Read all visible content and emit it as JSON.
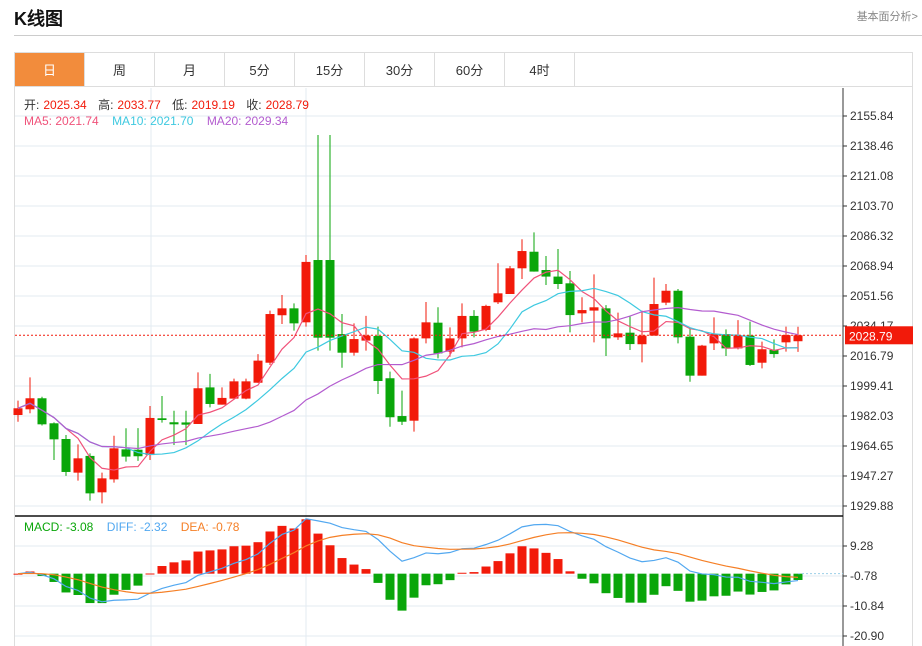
{
  "header": {
    "title": "K线图",
    "link": "基本面分析>"
  },
  "tabs": [
    {
      "label": "日",
      "active": true
    },
    {
      "label": "周"
    },
    {
      "label": "月"
    },
    {
      "label": "5分"
    },
    {
      "label": "15分"
    },
    {
      "label": "30分"
    },
    {
      "label": "60分"
    },
    {
      "label": "4时"
    }
  ],
  "ohlc_info": {
    "open_label": "开:",
    "open": "2025.34",
    "high_label": "高:",
    "high": "2033.77",
    "low_label": "低:",
    "low": "2019.19",
    "close_label": "收:",
    "close": "2028.79"
  },
  "ma_info": {
    "ma5": "MA5: 2021.74",
    "ma10": "MA10: 2021.70",
    "ma20": "MA20: 2029.34"
  },
  "macd_info": {
    "macd": "MACD: -3.08",
    "diff": "DIFF: -2.32",
    "dea": "DEA: -0.78"
  },
  "colors": {
    "up": "#f21a0a",
    "down": "#0aa60a",
    "ma5": "#f0527a",
    "ma10": "#3ec9e0",
    "ma20": "#b35ccf",
    "diff": "#52a8f0",
    "dea": "#f57f26",
    "tab_active": "#f28c3c"
  },
  "chart_data": {
    "type": "candlestick",
    "price_axis_ticks": [
      "2155.84",
      "2138.46",
      "2121.08",
      "2103.70",
      "2086.32",
      "2068.94",
      "2051.56",
      "2034.17",
      "2016.79",
      "1999.41",
      "1982.03",
      "1964.65",
      "1947.27",
      "1929.88"
    ],
    "price_ylim": [
      1929.88,
      2155.84
    ],
    "last_price": "2028.79",
    "macd_axis_ticks": [
      "9.28",
      "-0.78",
      "-10.84",
      "-20.90"
    ],
    "macd_ylim": [
      -20.9,
      9.28
    ],
    "grid": true,
    "candles": [
      [
        1982.6,
        1990.9,
        1978.7,
        1986.5
      ],
      [
        1985.9,
        2004.4,
        1983.6,
        1992.3
      ],
      [
        1992.3,
        1993.2,
        1976.5,
        1977.2
      ],
      [
        1977.8,
        1978.3,
        1956.5,
        1968.5
      ],
      [
        1968.7,
        1971.0,
        1947.3,
        1949.6
      ],
      [
        1949.2,
        1965.6,
        1944.6,
        1957.5
      ],
      [
        1958.9,
        1960.4,
        1933.0,
        1937.2
      ],
      [
        1937.8,
        1949.2,
        1931.4,
        1945.9
      ],
      [
        1945.3,
        1970.6,
        1943.4,
        1963.3
      ],
      [
        1962.7,
        1974.9,
        1955.6,
        1958.5
      ],
      [
        1962.5,
        1975.0,
        1956.0,
        1958.7
      ],
      [
        1959.4,
        1987.8,
        1956.5,
        1980.9
      ],
      [
        1980.7,
        1993.6,
        1978.2,
        1979.7
      ],
      [
        1978.4,
        1985.1,
        1965.2,
        1977.2
      ],
      [
        1978.3,
        1985.1,
        1965.2,
        1977.0
      ],
      [
        1977.4,
        2007.3,
        1977.4,
        1998.1
      ],
      [
        1998.6,
        2006.4,
        1987.0,
        1989.0
      ],
      [
        1988.6,
        1998.6,
        1988.6,
        1992.5
      ],
      [
        1992.1,
        2003.7,
        1992.1,
        2002.1
      ],
      [
        1992.1,
        2003.7,
        1991.7,
        2002.1
      ],
      [
        2001.3,
        2017.9,
        2001.3,
        2014.1
      ],
      [
        2012.9,
        2043.1,
        2011.6,
        2041.1
      ],
      [
        2040.4,
        2052.1,
        2035.3,
        2044.4
      ],
      [
        2044.4,
        2047.3,
        2031.5,
        2035.7
      ],
      [
        2036.3,
        2075.3,
        2033.8,
        2071.3
      ],
      [
        2072.4,
        2144.8,
        2019.9,
        2027.4
      ],
      [
        2072.4,
        2144.8,
        2019.9,
        2027.4
      ],
      [
        2029.5,
        2041.1,
        2010.0,
        2018.7
      ],
      [
        2018.7,
        2035.7,
        2017.0,
        2026.6
      ],
      [
        2025.7,
        2040.0,
        2019.9,
        2028.6
      ],
      [
        2028.4,
        2033.8,
        1994.8,
        2002.3
      ],
      [
        2003.9,
        2007.7,
        1975.8,
        1981.3
      ],
      [
        1982.0,
        1996.7,
        1976.8,
        1978.7
      ],
      [
        1979.3,
        2027.6,
        1973.0,
        2027.0
      ],
      [
        2027.0,
        2048.1,
        2024.1,
        2036.3
      ],
      [
        2036.1,
        2045.0,
        2015.4,
        2018.3
      ],
      [
        2019.3,
        2033.4,
        2016.4,
        2027.0
      ],
      [
        2027.0,
        2047.3,
        2021.8,
        2040.0
      ],
      [
        2040.0,
        2043.4,
        2027.6,
        2030.9
      ],
      [
        2031.9,
        2046.5,
        2031.2,
        2045.8
      ],
      [
        2047.9,
        2070.5,
        2046.9,
        2053.1
      ],
      [
        2052.7,
        2068.9,
        2052.7,
        2067.6
      ],
      [
        2067.6,
        2084.4,
        2061.4,
        2077.6
      ],
      [
        2077.2,
        2088.4,
        2065.7,
        2065.7
      ],
      [
        2066.6,
        2074.7,
        2057.9,
        2062.8
      ],
      [
        2062.8,
        2078.8,
        2055.6,
        2058.5
      ],
      [
        2058.9,
        2066.0,
        2030.5,
        2040.5
      ],
      [
        2041.5,
        2050.8,
        2036.3,
        2043.4
      ],
      [
        2043.1,
        2064.1,
        2024.7,
        2045.0
      ],
      [
        2044.4,
        2046.3,
        2016.8,
        2027.0
      ],
      [
        2027.6,
        2041.9,
        2026.1,
        2029.9
      ],
      [
        2030.3,
        2040.0,
        2020.3,
        2023.7
      ],
      [
        2023.6,
        2043.1,
        2013.1,
        2028.6
      ],
      [
        2028.6,
        2062.2,
        2028.6,
        2046.9
      ],
      [
        2047.7,
        2058.5,
        2046.3,
        2054.6
      ],
      [
        2054.6,
        2055.6,
        2024.1,
        2027.6
      ],
      [
        2028.0,
        2032.8,
        2001.9,
        2005.4
      ],
      [
        2005.4,
        2023.2,
        2005.4,
        2022.8
      ],
      [
        2024.1,
        2039.2,
        2020.3,
        2029.5
      ],
      [
        2029.5,
        2032.2,
        2016.8,
        2021.2
      ],
      [
        2021.2,
        2037.6,
        2020.6,
        2028.6
      ],
      [
        2028.6,
        2036.7,
        2011.0,
        2011.6
      ],
      [
        2012.9,
        2025.1,
        2009.6,
        2020.7
      ],
      [
        2020.3,
        2026.4,
        2015.8,
        2017.9
      ],
      [
        2024.7,
        2033.8,
        2019.3,
        2028.9
      ],
      [
        2025.34,
        2033.77,
        2019.19,
        2028.79
      ]
    ]
  }
}
